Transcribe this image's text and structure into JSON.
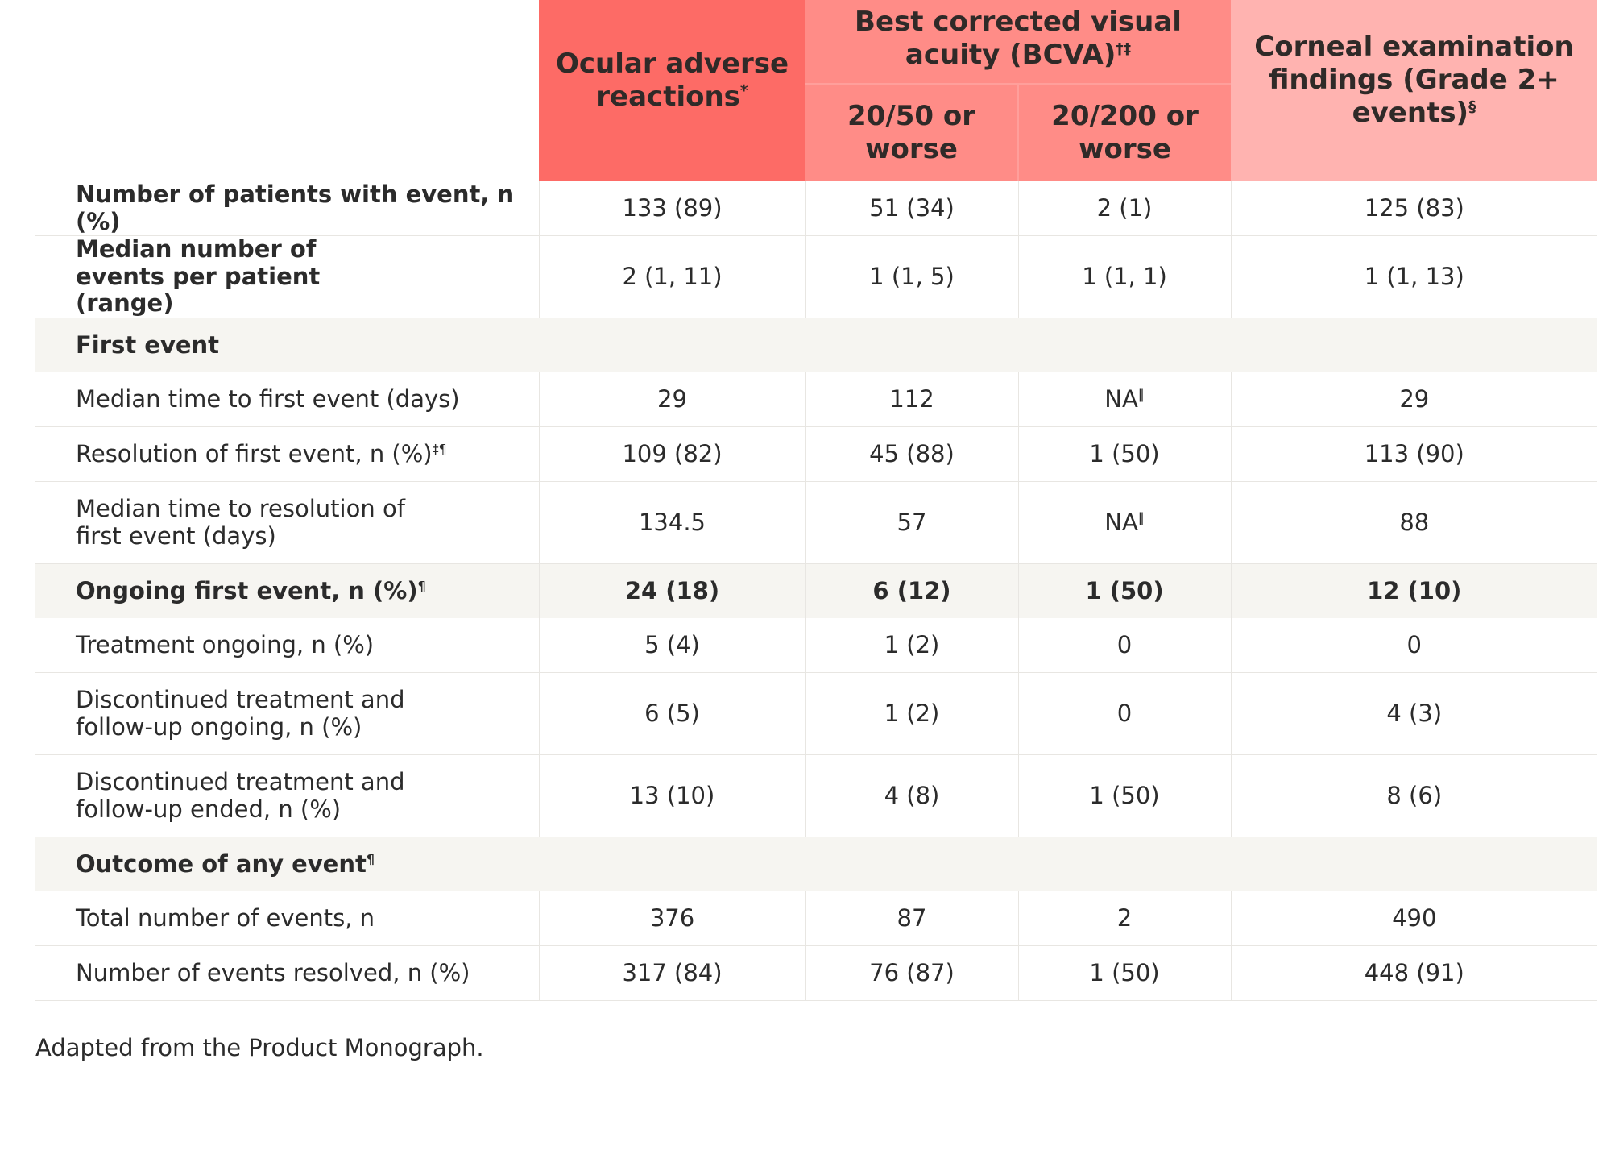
{
  "headers": {
    "ocular": {
      "text": "Ocular adverse reactions",
      "sup": "*"
    },
    "bcva": {
      "text": "Best corrected visual acuity (BCVA)",
      "sup": "†‡"
    },
    "b50": "20/50 or worse",
    "b200": "20/200 or worse",
    "corneal": {
      "text": "Corneal examination findings (Grade 2+ events)",
      "sup": "§"
    }
  },
  "rows": [
    {
      "label": "Number of patients with event, n (%)",
      "sup": "",
      "values": [
        "133 (89)",
        "51 (34)",
        "2 (1)",
        "125 (83)"
      ]
    },
    {
      "label": "Median number of events per patient (range)",
      "sup": "",
      "values": [
        "2 (1, 11)",
        "1 (1, 5)",
        "1 (1, 1)",
        "1 (1, 13)"
      ]
    },
    {
      "label": "First event",
      "sup": ""
    },
    {
      "label": "Median time to first event (days)",
      "sup": "",
      "values": [
        "29",
        "112",
        "NA",
        "29"
      ],
      "value_sups": [
        "",
        "",
        "‖",
        ""
      ]
    },
    {
      "label": "Resolution of first event, n (%)",
      "sup": "‡¶",
      "values": [
        "109 (82)",
        "45 (88)",
        "1 (50)",
        "113 (90)"
      ]
    },
    {
      "label": "Median time to resolution of first event (days)",
      "sup": "",
      "values": [
        "134.5",
        "57",
        "NA",
        "88"
      ],
      "value_sups": [
        "",
        "",
        "‖",
        ""
      ]
    },
    {
      "label": "Ongoing first event, n (%)",
      "sup": "¶",
      "values": [
        "24 (18)",
        "6 (12)",
        "1 (50)",
        "12 (10)"
      ]
    },
    {
      "label": "Treatment ongoing, n (%)",
      "sup": "",
      "values": [
        "5 (4)",
        "1 (2)",
        "0",
        "0"
      ]
    },
    {
      "label": "Discontinued treatment and follow-up ongoing, n (%)",
      "sup": "",
      "values": [
        "6 (5)",
        "1 (2)",
        "0",
        "4 (3)"
      ]
    },
    {
      "label": "Discontinued treatment and follow-up ended, n (%)",
      "sup": "",
      "values": [
        "13 (10)",
        "4 (8)",
        "1 (50)",
        "8 (6)"
      ]
    },
    {
      "label": "Outcome of any event",
      "sup": "¶"
    },
    {
      "label": "Total number of events, n",
      "sup": "",
      "values": [
        "376",
        "87",
        "2",
        "490"
      ]
    },
    {
      "label": "Number of events resolved, n (%)",
      "sup": "",
      "values": [
        "317 (84)",
        "76 (87)",
        "1 (50)",
        "448 (91)"
      ]
    }
  ],
  "footnote": "Adapted from the Product Monograph.",
  "colors": {
    "ocular_header": "#fd6b66",
    "bcva_header": "#ff8c87",
    "corneal_header": "#ffb3b0",
    "section_shade": "#f6f5f1"
  }
}
